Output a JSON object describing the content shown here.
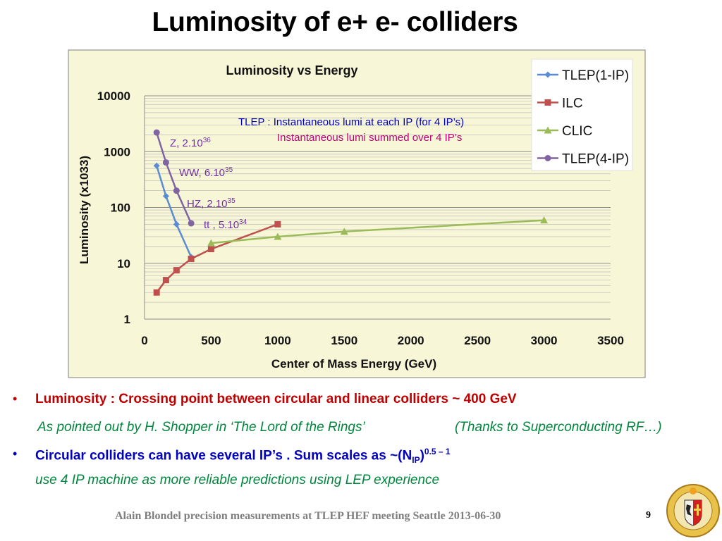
{
  "slide": {
    "title": "Luminosity of e+ e- colliders",
    "footer": "Alain Blondel precision measurements at TLEP HEF meeting Seattle 2013-06-30",
    "page_number": "9"
  },
  "bullets": {
    "b1_text": "Luminosity : Crossing point between circular and linear colliders ~ 400 GeV",
    "b1_sub_a": "As pointed out by H. Shopper in ‘The Lord of the Rings’",
    "b1_sub_b": "(Thanks to Superconducting  RF…)",
    "b2_text": "Circular colliders can have several IP’s . Sum scales as ~(N",
    "b2_sub": "IP",
    "b2_close": ")",
    "b2_sup": "0.5 – 1",
    "b2_line2": "use 4 IP machine as more reliable predictions using LEP experience",
    "bullet_char": "•"
  },
  "chart_data": {
    "type": "line",
    "title": "Luminosity vs Energy",
    "xlabel": "Center of Mass Energy (GeV)",
    "ylabel": "Luminosity (x1033)",
    "xlim": [
      0,
      3500
    ],
    "ylim": [
      1,
      10000
    ],
    "yscale": "log",
    "x_ticks": [
      "0",
      "500",
      "1000",
      "1500",
      "2000",
      "2500",
      "3000",
      "3500"
    ],
    "y_ticks": [
      "1",
      "10",
      "100",
      "1000",
      "10000"
    ],
    "grid": true,
    "legend_position": "top-right",
    "background": "#f7f6d7",
    "series": [
      {
        "name": "TLEP(1-IP)",
        "color": "#5b8bd2",
        "marker": "diamond",
        "x": [
          91,
          161,
          240,
          350
        ],
        "y": [
          560,
          160,
          50,
          13
        ]
      },
      {
        "name": "ILC",
        "color": "#c0504d",
        "marker": "square",
        "x": [
          91,
          161,
          240,
          350,
          500,
          1000
        ],
        "y": [
          3,
          5,
          7.5,
          12,
          18,
          50
        ]
      },
      {
        "name": "CLIC",
        "color": "#9bbb59",
        "marker": "triangle",
        "x": [
          500,
          1000,
          1500,
          3000
        ],
        "y": [
          23,
          30,
          37,
          59
        ]
      },
      {
        "name": "TLEP(4-IP)",
        "color": "#8064a2",
        "marker": "circle",
        "x": [
          91,
          161,
          240,
          350
        ],
        "y": [
          2200,
          640,
          200,
          52
        ]
      }
    ],
    "annotations": {
      "box_line1": "TLEP : Instantaneous lumi at each IP (for 4 IP’s)",
      "box_line2": "Instantaneous lumi summed over 4 IP’s",
      "box_color1": "#0000c0",
      "box_color2": "#c0007a",
      "points": [
        {
          "base": "Z, 2.10",
          "exp": "36"
        },
        {
          "base": "WW, 6.10",
          "exp": "35"
        },
        {
          "base": "HZ, 2.10",
          "exp": "35"
        },
        {
          "base": "tt , 5.10",
          "exp": "34"
        }
      ],
      "point_color": "#7030a0"
    }
  },
  "colors": {
    "bullet_red": "#c00000",
    "bullet_blue": "#0000c0",
    "bullet_green": "#00863d",
    "chart_border": "#7f7f7f"
  }
}
